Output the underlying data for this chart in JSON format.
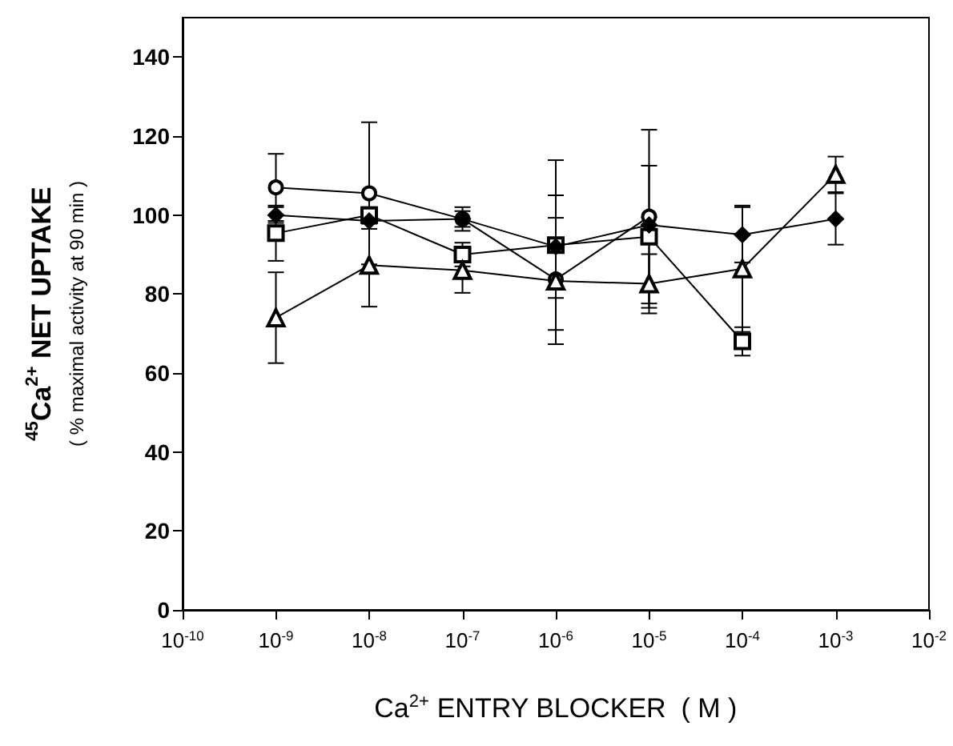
{
  "chart_data": {
    "type": "line",
    "xlabel": "Ca$^{2+}$ ENTRY BLOCKER  ( M )",
    "ylabel": "$^{45}$Ca$^{2+}$ NET UPTAKE\n( % maximal activity at 90 min )",
    "log": "x",
    "xlim": [
      1e-10,
      0.01
    ],
    "xticks": [
      {
        "value": 1e-10,
        "label": "10$^{-10}$"
      },
      {
        "value": 1e-09,
        "label": "10$^{-9}$"
      },
      {
        "value": 1e-08,
        "label": "10$^{-8}$"
      },
      {
        "value": 1e-07,
        "label": "10$^{-7}$"
      },
      {
        "value": 1e-06,
        "label": "10$^{-6}$"
      },
      {
        "value": 1e-05,
        "label": "10$^{-5}$"
      },
      {
        "value": 0.0001,
        "label": "10$^{-4}$"
      },
      {
        "value": 0.001,
        "label": "10$^{-3}$"
      },
      {
        "value": 0.01,
        "label": "10$^{-2}$"
      }
    ],
    "ylim": [
      0,
      150
    ],
    "yticks": [
      0,
      20,
      40,
      60,
      80,
      100,
      120,
      140
    ],
    "grid": false,
    "line_style": "solid",
    "series": [
      {
        "color": "#000000",
        "marker": "circle",
        "x": [
          1e-09,
          1e-08,
          1e-07,
          1e-06,
          1e-05
        ],
        "values": [
          107,
          105.5,
          99,
          83.7,
          99.6
        ],
        "errors": [
          8.5,
          18,
          2,
          null,
          22
        ]
      },
      {
        "color": "#000000",
        "marker": "square",
        "x": [
          1e-09,
          1e-08,
          1e-07,
          1e-06,
          1e-05,
          0.0001
        ],
        "values": [
          95.4,
          100,
          90,
          92.4,
          94.5,
          68
        ],
        "errors": [
          7,
          2,
          3,
          21.5,
          18,
          3.6
        ]
      },
      {
        "color": "#000000",
        "marker": "triangle",
        "x": [
          1e-09,
          1e-08,
          1e-07,
          1e-06,
          1e-05,
          0.0001,
          0.001
        ],
        "values": [
          74,
          87.3,
          86,
          83.3,
          82.6,
          86.4,
          110.3
        ],
        "errors": [
          11.5,
          10.5,
          5.7,
          16,
          7.5,
          16,
          4.5
        ]
      },
      {
        "color": "#000000",
        "marker": "diamond",
        "x": [
          1e-09,
          1e-08,
          1e-07,
          1e-06,
          1e-05,
          0.0001,
          0.001
        ],
        "values": [
          100,
          98.5,
          99,
          92,
          97.5,
          95,
          99
        ],
        "errors": [
          2,
          2,
          3,
          13,
          2,
          7,
          6.5
        ]
      }
    ]
  }
}
